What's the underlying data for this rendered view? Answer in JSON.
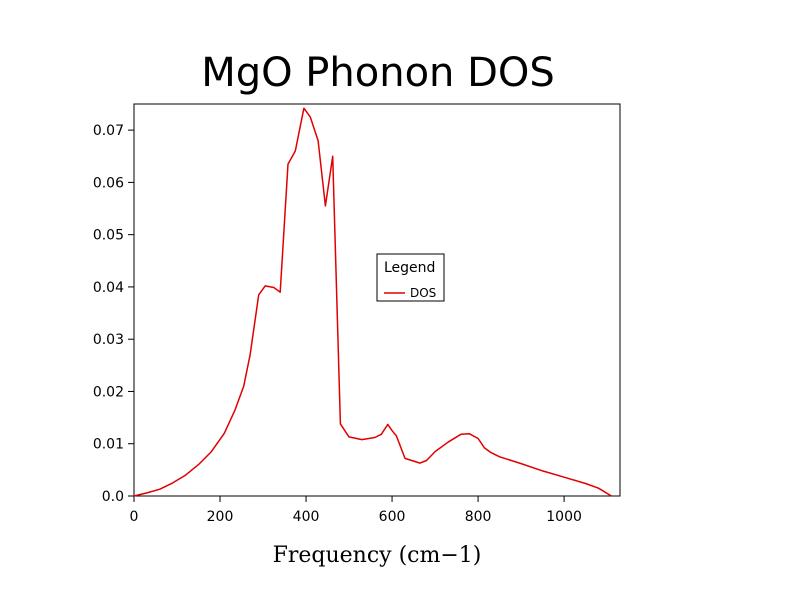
{
  "chart_data": {
    "type": "line",
    "title": "MgO Phonon DOS",
    "xlabel": "Frequency (cm−1)",
    "ylabel": "",
    "xlim": [
      0,
      1130
    ],
    "ylim": [
      0,
      0.075
    ],
    "x_ticks": [
      0,
      200,
      400,
      600,
      800,
      1000
    ],
    "x_tick_labels": [
      "0",
      "200",
      "400",
      "600",
      "800",
      "1000"
    ],
    "y_ticks": [
      0.0,
      0.01,
      0.02,
      0.03,
      0.04,
      0.05,
      0.06,
      0.07
    ],
    "y_tick_labels": [
      "0.0",
      "0.01",
      "0.02",
      "0.03",
      "0.04",
      "0.05",
      "0.06",
      "0.07"
    ],
    "grid": false,
    "legend": {
      "title": "Legend",
      "placement": "center-right"
    },
    "series": [
      {
        "name": "DOS",
        "color": "#e00000",
        "x": [
          0,
          30,
          60,
          90,
          120,
          150,
          180,
          210,
          235,
          255,
          270,
          290,
          305,
          325,
          340,
          358,
          375,
          395,
          410,
          428,
          445,
          462,
          480,
          500,
          530,
          560,
          575,
          590,
          600,
          610,
          630,
          665,
          680,
          700,
          730,
          760,
          780,
          800,
          815,
          830,
          850,
          900,
          950,
          1000,
          1050,
          1080,
          1110
        ],
        "y": [
          0.0,
          0.0006,
          0.0013,
          0.0025,
          0.004,
          0.006,
          0.0085,
          0.012,
          0.0165,
          0.021,
          0.027,
          0.0385,
          0.0402,
          0.0399,
          0.039,
          0.0635,
          0.066,
          0.0742,
          0.0725,
          0.068,
          0.0555,
          0.065,
          0.0138,
          0.0113,
          0.0108,
          0.0112,
          0.0118,
          0.0137,
          0.0125,
          0.0115,
          0.0072,
          0.0063,
          0.0068,
          0.0085,
          0.0103,
          0.0118,
          0.0119,
          0.011,
          0.0092,
          0.0083,
          0.0075,
          0.0062,
          0.0048,
          0.0036,
          0.0024,
          0.0015,
          0.0
        ]
      }
    ]
  }
}
